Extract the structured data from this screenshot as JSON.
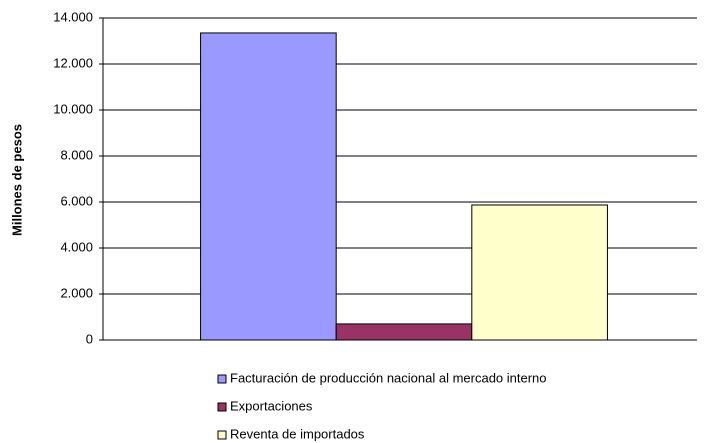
{
  "chart_data": {
    "type": "bar",
    "axis_label_y": "Millones de pesos",
    "categories": [
      null
    ],
    "series": [
      {
        "name": "Facturación de producción nacional al mercado interno",
        "color": "#9999ff",
        "values": [
          13350
        ]
      },
      {
        "name": "Exportaciones",
        "color": "#993366",
        "values": [
          700
        ]
      },
      {
        "name": "Reventa de importados",
        "color": "#ffffcc",
        "values": [
          5870
        ]
      }
    ],
    "ylim": [
      0,
      14000
    ],
    "yticks": [
      0,
      {
        "value": 2000,
        "label": "2.000"
      },
      {
        "value": 4000,
        "label": "4.000"
      },
      {
        "value": 6000,
        "label": "6.000"
      },
      {
        "value": 8000,
        "label": "8.000"
      },
      {
        "value": 10000,
        "label": "10.000"
      },
      {
        "value": 12000,
        "label": "12.000"
      },
      {
        "value": 14000,
        "label": "14.000"
      }
    ],
    "grid": true,
    "legend": "bottom"
  }
}
